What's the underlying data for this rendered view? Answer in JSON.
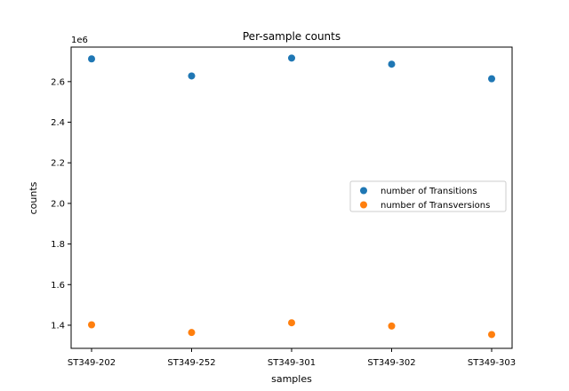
{
  "chart_data": {
    "type": "scatter",
    "title": "Per-sample counts",
    "xlabel": "samples",
    "ylabel": "counts",
    "y_scale_label": "1e6",
    "categories": [
      "ST349-202",
      "ST349-252",
      "ST349-301",
      "ST349-302",
      "ST349-303"
    ],
    "y_ticks": [
      1.4,
      1.6,
      1.8,
      2.0,
      2.2,
      2.4,
      2.6
    ],
    "y_tick_labels": [
      "1.4",
      "1.6",
      "1.8",
      "2.0",
      "2.2",
      "2.4",
      "2.6"
    ],
    "ylim": [
      1.286,
      2.77
    ],
    "grid": false,
    "legend_position": "center-right",
    "series": [
      {
        "name": "number of Transitions",
        "color": "#1f77b4",
        "values": [
          2.712,
          2.628,
          2.716,
          2.686,
          2.614
        ]
      },
      {
        "name": "number of Transversions",
        "color": "#ff7f0e",
        "values": [
          1.402,
          1.364,
          1.412,
          1.396,
          1.354
        ]
      }
    ]
  }
}
